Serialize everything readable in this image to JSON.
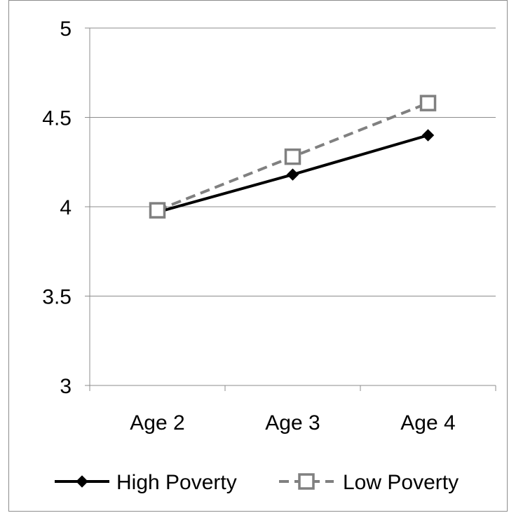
{
  "chart_data": {
    "type": "line",
    "categories": [
      "Age 2",
      "Age 3",
      "Age 4"
    ],
    "ylim": [
      3,
      5
    ],
    "yticks": [
      "3",
      "3.5",
      "4",
      "4.5",
      "5"
    ],
    "grid": true,
    "legend_position": "bottom",
    "series": [
      {
        "name": "High Poverty",
        "values": [
          3.97,
          4.18,
          4.4
        ],
        "color": "#000000",
        "line_style": "solid",
        "marker": "diamond-filled"
      },
      {
        "name": "Low Poverty",
        "values": [
          3.98,
          4.28,
          4.58
        ],
        "color": "#808080",
        "line_style": "dashed",
        "marker": "square-open"
      }
    ]
  }
}
